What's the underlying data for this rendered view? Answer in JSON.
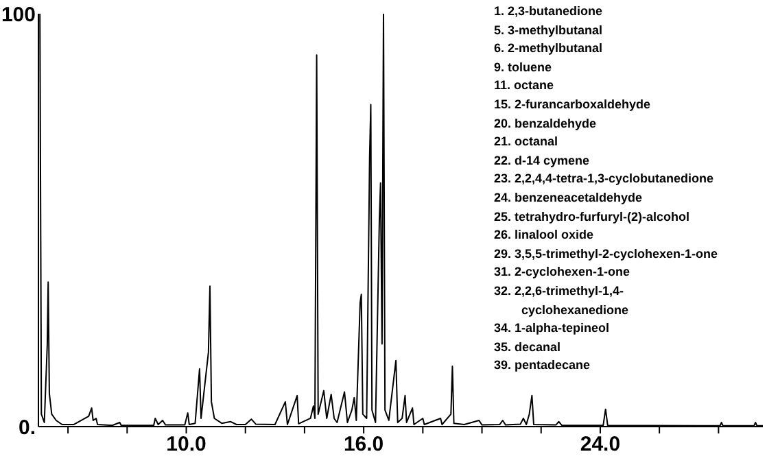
{
  "chart_data": {
    "type": "line",
    "x": [
      5.05,
      5.1,
      5.2,
      5.3,
      5.33,
      5.37,
      5.45,
      5.6,
      5.8,
      6.2,
      6.7,
      6.8,
      6.85,
      6.95,
      7.0,
      7.5,
      7.75,
      7.8,
      8.9,
      8.95,
      9.05,
      9.2,
      9.3,
      9.95,
      10.05,
      10.1,
      10.3,
      10.45,
      10.5,
      10.75,
      10.8,
      10.85,
      10.95,
      11.2,
      11.5,
      11.7,
      12.0,
      12.2,
      12.35,
      13.0,
      13.35,
      13.42,
      13.75,
      13.8,
      14.2,
      14.3,
      14.35,
      14.41,
      14.46,
      14.65,
      14.75,
      14.9,
      15.0,
      15.1,
      15.35,
      15.45,
      15.6,
      15.68,
      15.75,
      15.88,
      15.92,
      15.97,
      16.1,
      16.2,
      16.24,
      16.28,
      16.4,
      16.53,
      16.57,
      16.62,
      16.67,
      16.72,
      16.85,
      17.09,
      17.15,
      17.3,
      17.4,
      17.45,
      17.65,
      17.7,
      18.0,
      18.05,
      18.6,
      18.65,
      18.95,
      19.0,
      19.05,
      19.4,
      19.9,
      20.0,
      20.6,
      20.7,
      20.8,
      21.3,
      21.4,
      21.5,
      21.6,
      21.69,
      21.75,
      22.5,
      22.6,
      22.7,
      24.1,
      24.18,
      24.25,
      28.05,
      28.1,
      28.15,
      29.2,
      29.25,
      29.3,
      29.5
    ],
    "series": [
      {
        "color": "#000000",
        "values": [
          100,
          3,
          1,
          20,
          35,
          8,
          3,
          1.5,
          0.5,
          0.5,
          2.5,
          4.5,
          1.5,
          2,
          0.5,
          0.3,
          1,
          0.3,
          0.3,
          2,
          0.5,
          1.5,
          0.4,
          0.4,
          3.3,
          0.5,
          0.8,
          14,
          2,
          18,
          34,
          6,
          2,
          0.8,
          1.2,
          0.5,
          0.5,
          1.8,
          0.6,
          0.5,
          6,
          0.5,
          7.5,
          0.7,
          2,
          5,
          2,
          90,
          3,
          8.7,
          2,
          7.8,
          2,
          1,
          8.4,
          1,
          4,
          7,
          1.5,
          30,
          32,
          3,
          2,
          65,
          78,
          4,
          1,
          50,
          59,
          20,
          100,
          4,
          1.5,
          16,
          1,
          2,
          7.5,
          1,
          4.5,
          0.5,
          2,
          0.5,
          2,
          0.5,
          3,
          14.6,
          0.8,
          0.5,
          1.5,
          0.4,
          0.5,
          1.5,
          0.4,
          0.6,
          2,
          0.5,
          3,
          7.5,
          0.5,
          0.4,
          1.2,
          0.3,
          0.3,
          4.2,
          0.3,
          0.2,
          1,
          0.2,
          0.2,
          1,
          0.2,
          0.2
        ]
      }
    ],
    "xlim": [
      5.0,
      29.5
    ],
    "xticks": [
      {
        "value": 6,
        "label": null
      },
      {
        "value": 8,
        "label": null
      },
      {
        "value": 10,
        "label": "10.0"
      },
      {
        "value": 12,
        "label": null
      },
      {
        "value": 14,
        "label": null
      },
      {
        "value": 16,
        "label": "16.0"
      },
      {
        "value": 18,
        "label": null
      },
      {
        "value": 20,
        "label": null
      },
      {
        "value": 22,
        "label": null
      },
      {
        "value": 24,
        "label": "24.0"
      },
      {
        "value": 26,
        "label": null
      },
      {
        "value": 28,
        "label": null
      }
    ],
    "ylim": [
      0,
      100
    ],
    "yticks": [
      {
        "value": 0,
        "label": "0."
      },
      100
    ],
    "marker": "none",
    "line_style": "solid",
    "annotations": [
      "1. 2,3-butanedione",
      "5. 3-methylbutanal",
      "6. 2-methylbutanal",
      "9. toluene",
      "11. octane",
      "15. 2-furancarboxaldehyde",
      "20. benzaldehyde",
      "21. octanal",
      "22. d-14 cymene",
      "23. 2,2,4,4-tetra-1,3-cyclobutanedione",
      "24. benzeneacetaldehyde",
      "25. tetrahydro-furfuryl-(2)-alcohol",
      "26. linalool oxide",
      "29. 3,5,5-trimethyl-2-cyclohexen-1-one",
      "31. 2-cyclohexen-1-one",
      "32. 2,2,6-trimethyl-1,4-cyclohexanedione",
      "34. 1-alpha-tepineol",
      "35. decanal",
      "39. pentadecane"
    ]
  }
}
